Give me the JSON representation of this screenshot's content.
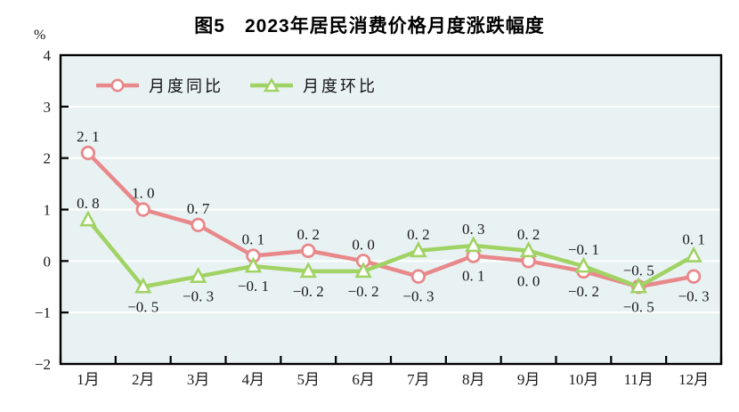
{
  "title": "图5　2023年居民消费价格月度涨跌幅度",
  "y_axis_unit": "%",
  "colors": {
    "tongbi_red": "#e8888a",
    "huanbi_green": "#a0d264",
    "plot_bg": "#e8f2f3",
    "grid": "#ffffff",
    "axis": "#000000",
    "label_text": "#1a1a1a"
  },
  "chart_data": {
    "type": "line",
    "categories": [
      "1月",
      "2月",
      "3月",
      "4月",
      "5月",
      "6月",
      "7月",
      "8月",
      "9月",
      "10月",
      "11月",
      "12月"
    ],
    "series": [
      {
        "name": "月度同比",
        "marker": "circle",
        "color": "#e8888a",
        "values": [
          2.1,
          1.0,
          0.7,
          0.1,
          0.2,
          0.0,
          -0.3,
          0.1,
          0.0,
          -0.2,
          -0.5,
          -0.3
        ],
        "label_position": [
          "above",
          "above",
          "above",
          "above",
          "above",
          "above",
          "below",
          "below",
          "below",
          "below",
          "below",
          "below"
        ]
      },
      {
        "name": "月度环比",
        "marker": "triangle",
        "color": "#a0d264",
        "values": [
          0.8,
          -0.5,
          -0.3,
          -0.1,
          -0.2,
          -0.2,
          0.2,
          0.3,
          0.2,
          -0.1,
          -0.5,
          0.1
        ],
        "label_position": [
          "above",
          "below",
          "below",
          "below",
          "below",
          "below",
          "above",
          "above",
          "above",
          "above",
          "above",
          "above"
        ]
      }
    ],
    "ylim": [
      -2,
      4
    ],
    "yticks": [
      4,
      3,
      2,
      1,
      0,
      -1,
      -2
    ],
    "grid": true,
    "legend_position": "top-left-inside"
  }
}
